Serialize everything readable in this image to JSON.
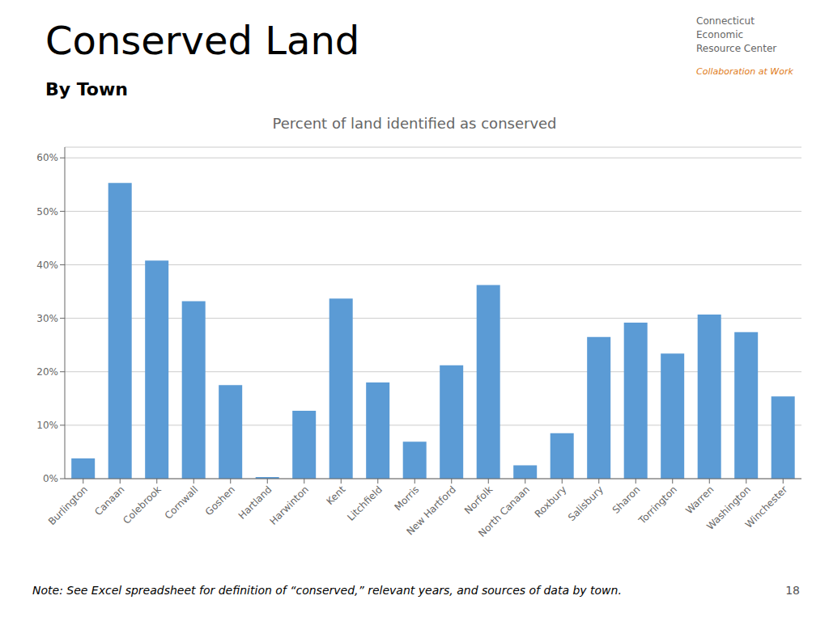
{
  "chart_data": {
    "type": "bar",
    "title": "Conserved Land",
    "subtitle": "By Town",
    "annotations": [
      "Percent of land identified as conserved",
      "Note: See Excel spreadsheet for definition of “conserved,” relevant years, and sources of data by town.",
      "18",
      "Connecticut\nEconomic\nResource Center",
      "Collaboration at Work"
    ],
    "categories": [
      "Burlington",
      "Canaan",
      "Colebrook",
      "Cornwall",
      "Goshen",
      "Hartland",
      "Harwinton",
      "Kent",
      "Litchfield",
      "Morris",
      "New Hartford",
      "Norfolk",
      "North Canaan",
      "Roxbury",
      "Salisbury",
      "Sharon",
      "Torrington",
      "Warren",
      "Washington",
      "Winchester"
    ],
    "values": [
      0.038,
      0.553,
      0.408,
      0.332,
      0.175,
      0.003,
      0.127,
      0.337,
      0.18,
      0.069,
      0.212,
      0.362,
      0.025,
      0.085,
      0.265,
      0.292,
      0.234,
      0.307,
      0.274,
      0.154
    ],
    "color": "#5b9bd5",
    "ylim": [
      0,
      0.62
    ],
    "yticks": [
      {
        "value": 0.0,
        "label": "0%"
      },
      {
        "value": 0.1,
        "label": "10%"
      },
      {
        "value": 0.2,
        "label": "20%"
      },
      {
        "value": 0.3,
        "label": "30%"
      },
      {
        "value": 0.4,
        "label": "40%"
      },
      {
        "value": 0.5,
        "label": "50%"
      },
      {
        "value": 0.6,
        "label": "60%"
      }
    ],
    "grid": true
  }
}
